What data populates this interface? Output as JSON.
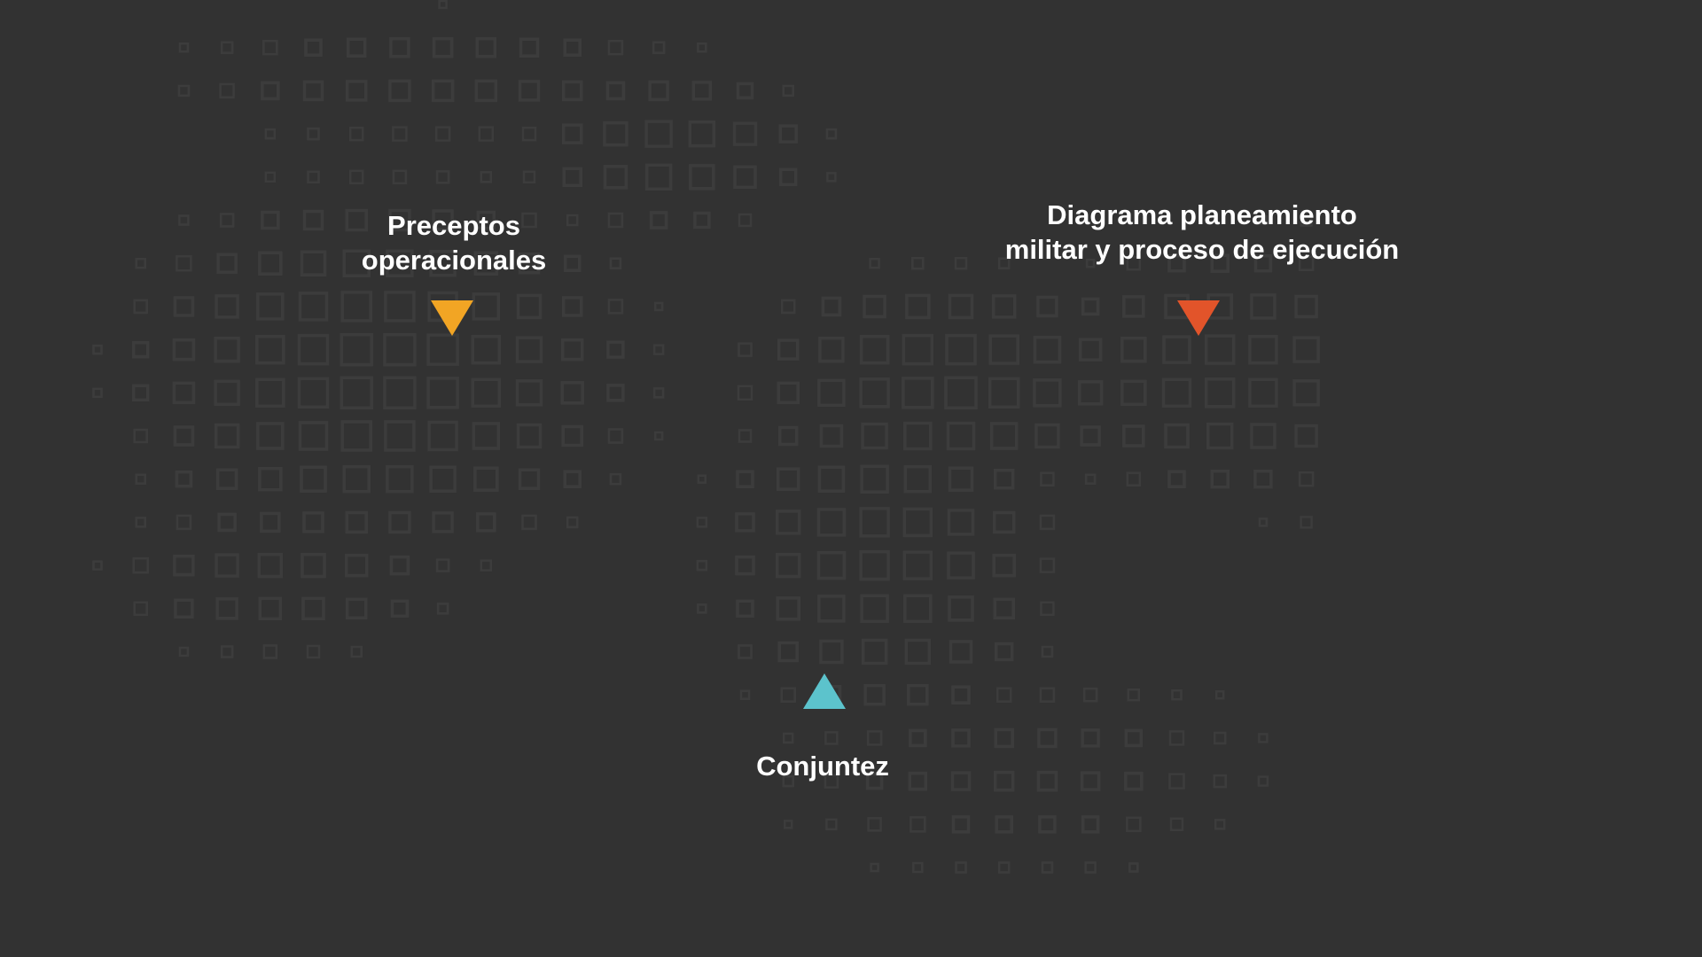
{
  "diagram": {
    "nodes": [
      {
        "id": "preceptos",
        "lines": [
          "Preceptos",
          "operacionales"
        ],
        "marker_color": "#f2a524",
        "marker": "triangle-down-icon"
      },
      {
        "id": "diagrama",
        "lines": [
          "Diagrama planeamiento",
          "militar y proceso de ejecución"
        ],
        "marker_color": "#e2542a",
        "marker": "triangle-down-icon"
      },
      {
        "id": "conjuntez",
        "lines": [
          "Conjuntez"
        ],
        "marker_color": "#5cc3cc",
        "marker": "triangle-up-icon"
      }
    ]
  },
  "colors": {
    "background": "#323232",
    "map_squares": "#3c3c3c",
    "label_text": "#ffffff"
  },
  "background_icon": "world-map-dots-icon"
}
